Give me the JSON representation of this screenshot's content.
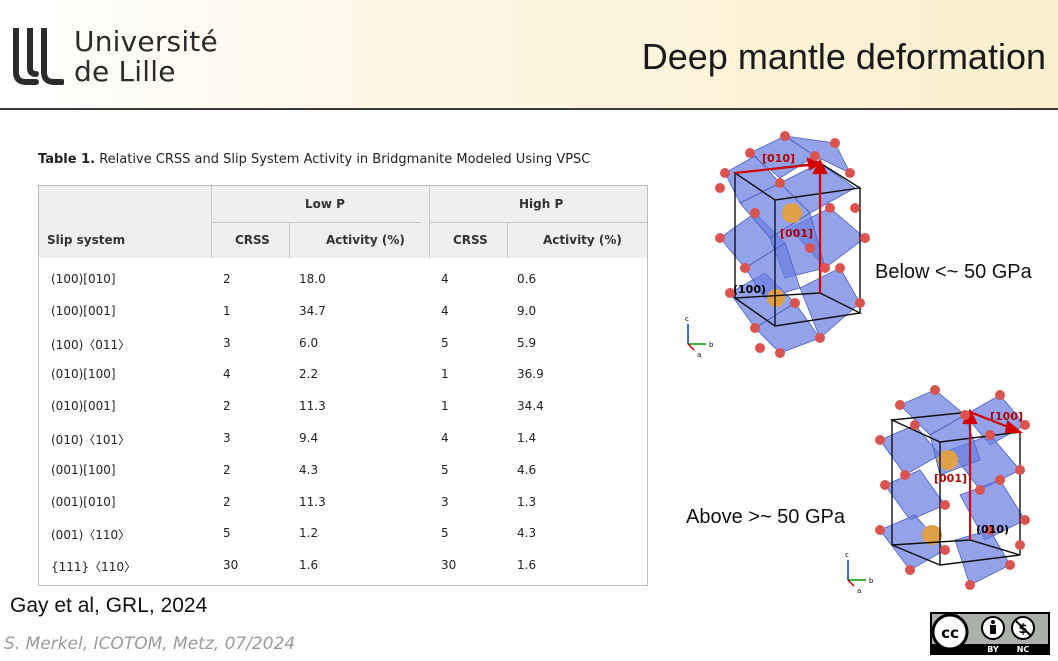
{
  "header": {
    "logo_line1": "Université",
    "logo_line2": "de Lille",
    "title": "Deep mantle deformation"
  },
  "table": {
    "caption_label": "Table 1.",
    "caption_text": "Relative CRSS and Slip System Activity in Bridgmanite Modeled Using VPSC",
    "group_low": "Low P",
    "group_high": "High P",
    "col_slip": "Slip system",
    "col_crss": "CRSS",
    "col_activity": "Activity (%)",
    "rows": [
      {
        "slip": "(100)[010]",
        "low_crss": "2",
        "low_act": "18.0",
        "high_crss": "4",
        "high_act": "0.6"
      },
      {
        "slip": "(100)[001]",
        "low_crss": "1",
        "low_act": "34.7",
        "high_crss": "4",
        "high_act": "9.0"
      },
      {
        "slip": "(100)〈011〉",
        "low_crss": "3",
        "low_act": "6.0",
        "high_crss": "5",
        "high_act": "5.9"
      },
      {
        "slip": "(010)[100]",
        "low_crss": "4",
        "low_act": "2.2",
        "high_crss": "1",
        "high_act": "36.9"
      },
      {
        "slip": "(010)[001]",
        "low_crss": "2",
        "low_act": "11.3",
        "high_crss": "1",
        "high_act": "34.4"
      },
      {
        "slip": "(010)〈101〉",
        "low_crss": "3",
        "low_act": "9.4",
        "high_crss": "4",
        "high_act": "1.4"
      },
      {
        "slip": "(001)[100]",
        "low_crss": "2",
        "low_act": "4.3",
        "high_crss": "5",
        "high_act": "4.6"
      },
      {
        "slip": "(001)[010]",
        "low_crss": "2",
        "low_act": "11.3",
        "high_crss": "3",
        "high_act": "1.3"
      },
      {
        "slip": "(001)〈110〉",
        "low_crss": "5",
        "low_act": "1.2",
        "high_crss": "5",
        "high_act": "4.3"
      },
      {
        "slip": "{111}〈110〉",
        "low_crss": "30",
        "low_act": "1.6",
        "high_crss": "30",
        "high_act": "1.6"
      }
    ]
  },
  "structures": {
    "top": {
      "dir_010": "[010]",
      "dir_001": "[001]",
      "plane": "(100)",
      "caption": "Below <~ 50 GPa"
    },
    "bottom": {
      "dir_100": "[100]",
      "dir_001": "[001]",
      "plane": "(010)",
      "caption": "Above >~ 50 GPa"
    },
    "axis_c": "c",
    "axis_a": "a",
    "axis_b": "b"
  },
  "citation": "Gay et al, GRL, 2024",
  "footer": "S. Merkel, ICOTOM, Metz, 07/2024",
  "license": {
    "by": "BY",
    "nc": "NC",
    "cc": "cc"
  },
  "colors": {
    "octahedra": "#6b7fe0",
    "oxygen": "#d9534f",
    "cation": "#e0a04a",
    "arrow": "#d40000"
  }
}
